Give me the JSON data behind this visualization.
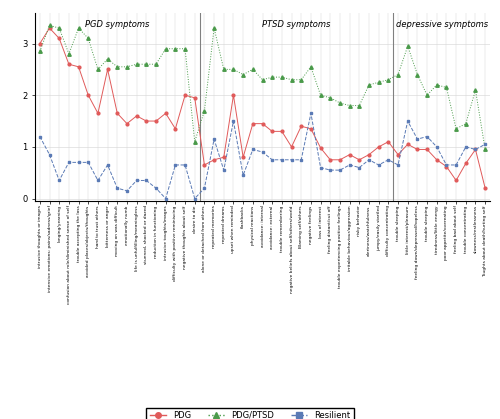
{
  "labels": [
    "intrusive thoughts or images",
    "intensive emotions: pains/sadness/grief",
    "longing/yearning",
    "confusion about role/diminished sense of self",
    "trouble accepting the loss",
    "avoided places/objects/thoughts",
    "hard to trust others",
    "bitterness or anger",
    "moving on was difficult",
    "emotionally numb",
    "life is unfulfilling/meaningless",
    "stunned, shocked or dazed",
    "reduction in functioning",
    "intrusive toughts/images",
    "difficulty with positive reminiscing",
    "negative thoughts about self",
    "desire to die",
    "alone or detached from others",
    "repeated memories",
    "repeated dreams",
    "upset when reminded",
    "flashbacks",
    "physical reactions",
    "avoidance: internal",
    "avoidance: external",
    "trouble remembering",
    "negative beliefs about self/others/world",
    "Blaming self/others",
    "negative feelings",
    "loss of interest",
    "feeling distant/cut off",
    "trouble experiencing positive feelings",
    "irritable behaviour/aggression",
    "risky behavior",
    "alertness/watchfulness",
    "jumpy/easily startled",
    "difficulty concentrating",
    "trouble sleeping",
    "little interest/pleasure",
    "feeling down/depressed/hopeless",
    "trouble sleeping",
    "tiredness/little energy",
    "poor appetite/overeating",
    "feeling bad about self",
    "trouble concentrating",
    "slowness/restlessness",
    "Toughts about death/hurting self"
  ],
  "pgd": [
    3.0,
    3.3,
    3.1,
    2.6,
    2.55,
    2.0,
    1.65,
    2.5,
    1.65,
    1.45,
    1.6,
    1.5,
    1.5,
    1.65,
    1.35,
    2.0,
    1.95,
    0.65,
    0.75,
    0.8,
    2.0,
    0.8,
    1.45,
    1.45,
    1.3,
    1.3,
    1.0,
    1.4,
    1.35,
    0.98,
    0.75,
    0.75,
    0.85,
    0.75,
    0.85,
    1.0,
    1.1,
    0.85,
    1.05,
    0.95,
    0.95,
    0.75,
    0.62,
    0.35,
    0.68,
    0.95,
    0.2
  ],
  "pgdptsd": [
    2.85,
    3.35,
    3.3,
    2.8,
    3.3,
    3.1,
    2.5,
    2.7,
    2.55,
    2.55,
    2.6,
    2.6,
    2.6,
    2.9,
    2.9,
    2.9,
    1.1,
    1.7,
    3.3,
    2.5,
    2.5,
    2.4,
    2.5,
    2.3,
    2.35,
    2.35,
    2.3,
    2.3,
    2.55,
    2.0,
    1.95,
    1.85,
    1.8,
    1.8,
    2.2,
    2.25,
    2.3,
    2.4,
    2.95,
    2.4,
    2.0,
    2.2,
    2.15,
    1.35,
    1.45,
    2.1,
    0.95
  ],
  "resilient": [
    1.2,
    0.85,
    0.35,
    0.7,
    0.7,
    0.7,
    0.35,
    0.65,
    0.2,
    0.15,
    0.35,
    0.35,
    0.2,
    0.0,
    0.65,
    0.65,
    0.0,
    0.2,
    1.15,
    0.55,
    1.5,
    0.45,
    0.95,
    0.9,
    0.75,
    0.75,
    0.75,
    0.75,
    1.65,
    0.6,
    0.55,
    0.55,
    0.65,
    0.6,
    0.75,
    0.65,
    0.75,
    0.65,
    1.5,
    1.15,
    1.2,
    1.0,
    0.65,
    0.65,
    1.0,
    0.95,
    1.05
  ],
  "section_lines": [
    17,
    37
  ],
  "section_labels": [
    "PGD symptoms",
    "PTSD symptoms",
    "depressive symptoms"
  ],
  "pgd_color": "#e05a5a",
  "pgdptsd_color": "#4a9a4a",
  "resilient_color": "#5a7ab5",
  "ylim": [
    -0.05,
    3.6
  ],
  "yticks": [
    0,
    1,
    2,
    3
  ],
  "figsize": [
    5.0,
    4.19
  ],
  "dpi": 100
}
